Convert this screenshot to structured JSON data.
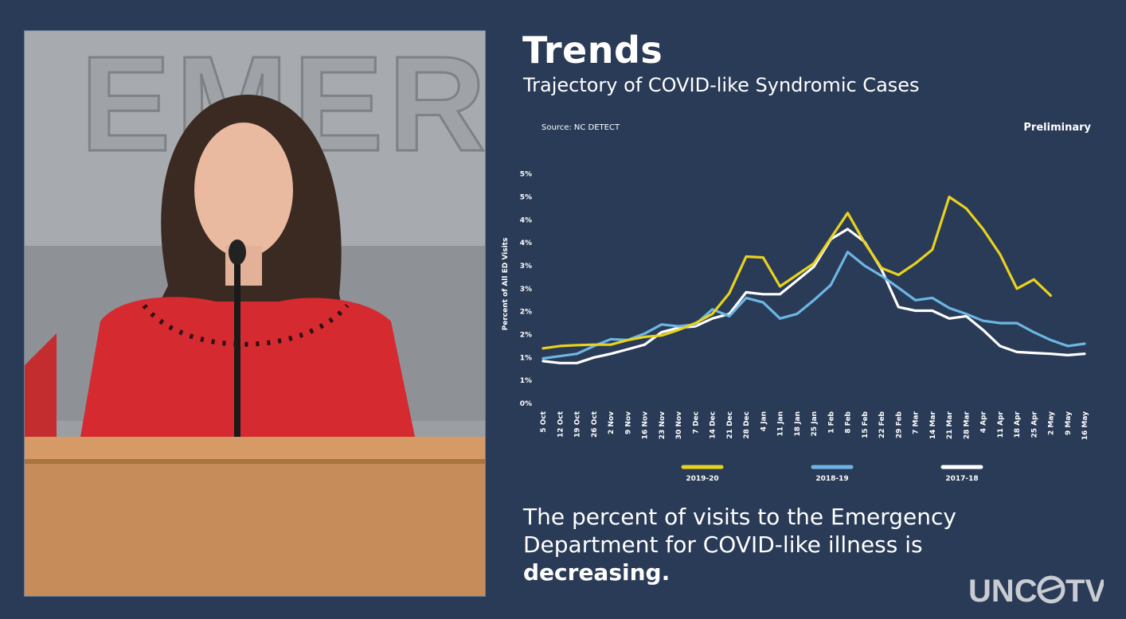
{
  "slide": {
    "title": "Trends",
    "subtitle": "Trajectory of COVID-like Syndromic Cases",
    "caption_prefix": "The percent of visits to the Emergency Department for COVID-like illness is ",
    "caption_emphasis": "decreasing.",
    "source": "Source: NC DETECT",
    "status": "Preliminary",
    "logo_text_left": "UNC",
    "logo_text_right": "TV"
  },
  "video": {
    "wall_sign": "EMERG"
  },
  "colors": {
    "background": "#2a3b57",
    "series_2019_20": "#e8d21e",
    "series_2018_19": "#6cb6e4",
    "series_2017_18": "#ffffff"
  },
  "chart_data": {
    "type": "line",
    "ylabel": "Percent of All ED Visits",
    "xlabel": "",
    "ylim": [
      0,
      6
    ],
    "ytick_labels": [
      "0%",
      "1%",
      "1%",
      "2%",
      "2%",
      "3%",
      "3%",
      "4%",
      "4%",
      "5%",
      "5%"
    ],
    "ytick_values": [
      0,
      0.5,
      1,
      1.5,
      2,
      2.5,
      3,
      3.5,
      4,
      4.5,
      5
    ],
    "grid": false,
    "legend_position": "bottom",
    "categories": [
      "5 Oct",
      "12 Oct",
      "19 Oct",
      "26 Oct",
      "2 Nov",
      "9 Nov",
      "16 Nov",
      "23 Nov",
      "30 Nov",
      "7 Dec",
      "14 Dec",
      "21 Dec",
      "28 Dec",
      "4 Jan",
      "11 Jan",
      "18 Jan",
      "25 Jan",
      "1 Feb",
      "8 Feb",
      "15 Feb",
      "22 Feb",
      "29 Feb",
      "7 Mar",
      "14 Mar",
      "21 Mar",
      "28 Mar",
      "4 Apr",
      "11 Apr",
      "18 Apr",
      "25 Apr",
      "2 May",
      "9 May",
      "16 May"
    ],
    "series": [
      {
        "name": "2019-20",
        "color": "#e8d21e",
        "values": [
          1.2,
          1.25,
          1.27,
          1.28,
          1.28,
          1.38,
          1.45,
          1.48,
          1.6,
          1.75,
          1.95,
          2.4,
          3.2,
          3.18,
          2.55,
          2.8,
          3.05,
          3.6,
          4.15,
          3.5,
          2.95,
          2.8,
          3.05,
          3.35,
          4.5,
          4.25,
          3.8,
          3.25,
          2.5,
          2.7,
          2.35,
          null,
          null
        ]
      },
      {
        "name": "2018-19",
        "color": "#6cb6e4",
        "values": [
          0.98,
          1.03,
          1.08,
          1.25,
          1.4,
          1.38,
          1.52,
          1.72,
          1.68,
          1.72,
          2.05,
          1.9,
          2.3,
          2.2,
          1.85,
          1.95,
          2.25,
          2.58,
          3.3,
          3.0,
          2.78,
          2.52,
          2.25,
          2.3,
          2.08,
          1.95,
          1.8,
          1.75,
          1.75,
          1.55,
          1.38,
          1.25,
          1.3
        ]
      },
      {
        "name": "2017-18",
        "color": "#ffffff",
        "values": [
          0.92,
          0.88,
          0.88,
          1.0,
          1.08,
          1.18,
          1.28,
          1.55,
          1.65,
          1.68,
          1.85,
          1.95,
          2.42,
          2.38,
          2.38,
          2.68,
          2.98,
          3.58,
          3.8,
          3.52,
          2.92,
          2.1,
          2.02,
          2.02,
          1.85,
          1.9,
          1.6,
          1.25,
          1.12,
          1.1,
          1.08,
          1.05,
          1.08
        ]
      }
    ]
  }
}
